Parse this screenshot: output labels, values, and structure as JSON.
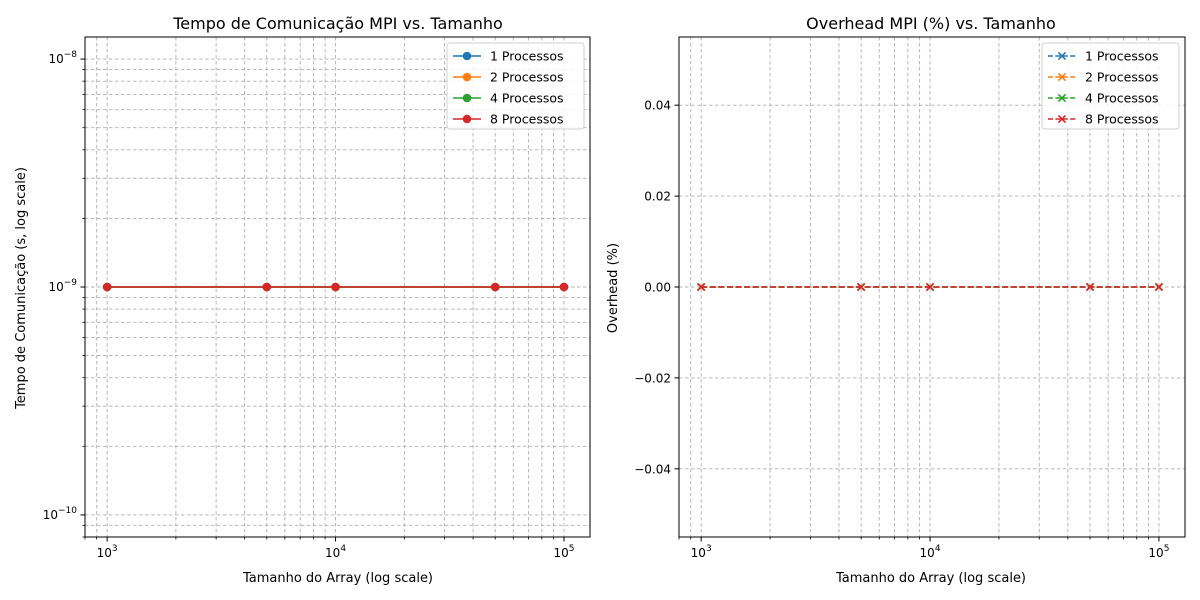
{
  "chart_data": [
    {
      "type": "line",
      "title": "Tempo de Comunicação MPI vs. Tamanho",
      "xlabel": "Tamanho do Array (log scale)",
      "ylabel": "Tempo de Comunicação (s, log scale)",
      "xscale": "log",
      "yscale": "log",
      "xlim": [
        800,
        130000
      ],
      "ylim": [
        8e-11,
        1.25e-08
      ],
      "x_ticks": [
        {
          "value": 1000,
          "base": "10",
          "exp": "3"
        },
        {
          "value": 10000,
          "base": "10",
          "exp": "4"
        },
        {
          "value": 100000,
          "base": "10",
          "exp": "5"
        }
      ],
      "y_ticks": [
        {
          "value": 1e-10,
          "base": "10",
          "exp": "−10"
        },
        {
          "value": 1e-09,
          "base": "10",
          "exp": "−9"
        },
        {
          "value": 1e-08,
          "base": "10",
          "exp": "−8"
        }
      ],
      "grid": true,
      "legend_position": "top-right",
      "marker": "circle",
      "linestyle": "solid",
      "x": [
        1000,
        5000,
        10000,
        50000,
        100000
      ],
      "series": [
        {
          "name": "1 Processos",
          "color": "#1f77b4",
          "values": [
            1e-09,
            1e-09,
            1e-09,
            1e-09,
            1e-09
          ]
        },
        {
          "name": "2 Processos",
          "color": "#ff7f0e",
          "values": [
            1e-09,
            1e-09,
            1e-09,
            1e-09,
            1e-09
          ]
        },
        {
          "name": "4 Processos",
          "color": "#2ca02c",
          "values": [
            1e-09,
            1e-09,
            1e-09,
            1e-09,
            1e-09
          ]
        },
        {
          "name": "8 Processos",
          "color": "#d62728",
          "values": [
            1e-09,
            1e-09,
            1e-09,
            1e-09,
            1e-09
          ]
        }
      ]
    },
    {
      "type": "line",
      "title": "Overhead MPI (%) vs. Tamanho",
      "xlabel": "Tamanho do Array (log scale)",
      "ylabel": "Overhead (%)",
      "xscale": "log",
      "yscale": "linear",
      "xlim": [
        800,
        130000
      ],
      "ylim": [
        -0.055,
        0.055
      ],
      "x_ticks": [
        {
          "value": 1000,
          "base": "10",
          "exp": "3"
        },
        {
          "value": 10000,
          "base": "10",
          "exp": "4"
        },
        {
          "value": 100000,
          "base": "10",
          "exp": "5"
        }
      ],
      "y_ticks": [
        {
          "value": -0.04,
          "label": "−0.04"
        },
        {
          "value": -0.02,
          "label": "−0.02"
        },
        {
          "value": 0.0,
          "label": "0.00"
        },
        {
          "value": 0.02,
          "label": "0.02"
        },
        {
          "value": 0.04,
          "label": "0.04"
        }
      ],
      "grid": true,
      "legend_position": "top-right",
      "marker": "x",
      "linestyle": "dashed",
      "x": [
        1000,
        5000,
        10000,
        50000,
        100000
      ],
      "series": [
        {
          "name": "1 Processos",
          "color": "#1f77b4",
          "values": [
            0,
            0,
            0,
            0,
            0
          ]
        },
        {
          "name": "2 Processos",
          "color": "#ff7f0e",
          "values": [
            0,
            0,
            0,
            0,
            0
          ]
        },
        {
          "name": "4 Processos",
          "color": "#2ca02c",
          "values": [
            0,
            0,
            0,
            0,
            0
          ]
        },
        {
          "name": "8 Processos",
          "color": "#d62728",
          "values": [
            0,
            0,
            0,
            0,
            0
          ]
        }
      ]
    }
  ]
}
